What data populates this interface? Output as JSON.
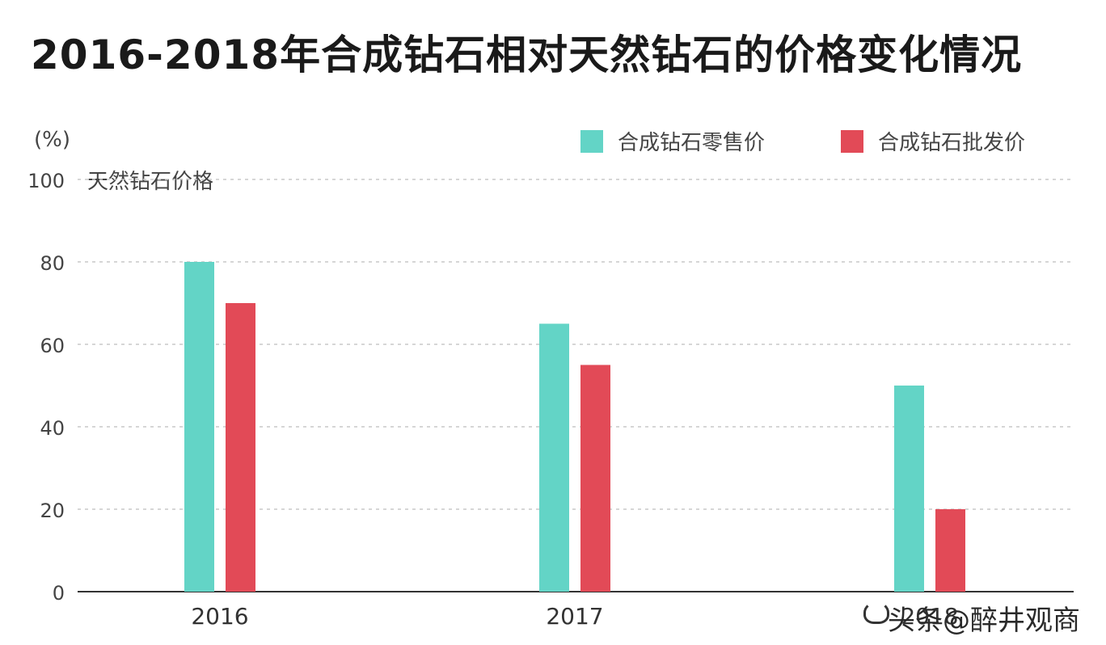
{
  "chart_data": {
    "type": "bar",
    "title": "2016-2018年合成钻石相对天然钻石的价格变化情况",
    "y_unit": "(%)",
    "reference_label": "天然钻石价格",
    "reference_value": 100,
    "categories": [
      "2016",
      "2017",
      "2018"
    ],
    "series": [
      {
        "name": "合成钻石零售价",
        "color": "#63d4c6",
        "values": [
          80,
          65,
          50
        ]
      },
      {
        "name": "合成钻石批发价",
        "color": "#e24a57",
        "values": [
          70,
          55,
          20
        ]
      }
    ],
    "yticks": [
      "100",
      "80",
      "60",
      "40",
      "20",
      "0"
    ],
    "ylim": [
      0,
      100
    ],
    "grid": true,
    "legend_position": "top-right"
  },
  "watermark": "头条@醉井观商"
}
